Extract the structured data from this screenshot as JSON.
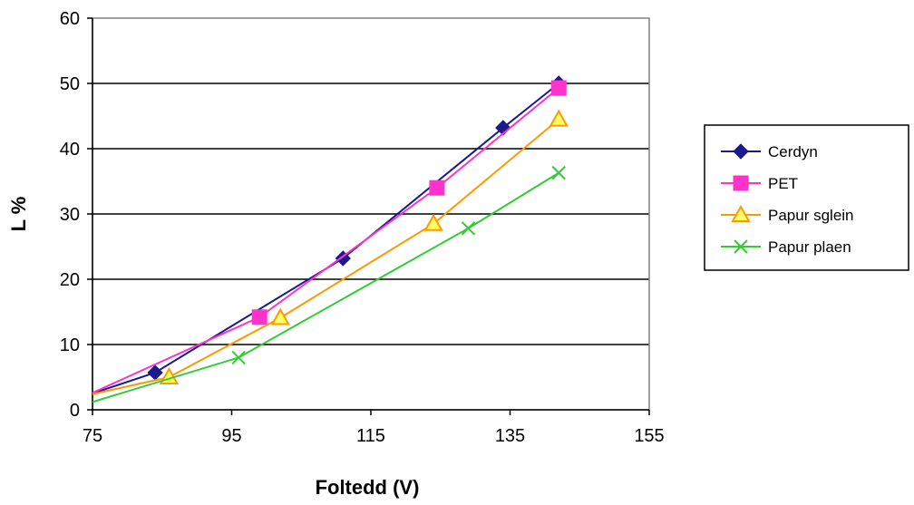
{
  "chart_data": {
    "type": "line",
    "xlabel": "Foltedd (V)",
    "ylabel": "L %",
    "xlim": [
      75,
      155
    ],
    "ylim": [
      0,
      60
    ],
    "xticks": [
      75,
      95,
      115,
      135,
      155
    ],
    "yticks": [
      0,
      10,
      20,
      30,
      40,
      50,
      60
    ],
    "grid": "horizontal",
    "legend_position": "right",
    "series": [
      {
        "name": "Cerdyn",
        "color": "#1a1a8c",
        "marker": "diamond",
        "points": [
          [
            75,
            2.5
          ],
          [
            84,
            5.7
          ],
          [
            111,
            23.2
          ],
          [
            134,
            43.2
          ],
          [
            142,
            50
          ]
        ]
      },
      {
        "name": "PET",
        "color": "#ff33cc",
        "marker": "square",
        "points": [
          [
            75,
            2.6
          ],
          [
            99,
            14.2
          ],
          [
            124.5,
            34
          ],
          [
            142,
            49.3
          ]
        ]
      },
      {
        "name": "Papur sglein",
        "color": "#ff9900",
        "marker": "triangle",
        "points": [
          [
            75,
            2.4
          ],
          [
            86,
            5
          ],
          [
            102,
            14.1
          ],
          [
            124,
            28.5
          ],
          [
            142,
            44.5
          ]
        ]
      },
      {
        "name": "Papur plaen",
        "color": "#33cc33",
        "marker": "x",
        "points": [
          [
            75,
            1.2
          ],
          [
            96,
            8
          ],
          [
            129,
            27.8
          ],
          [
            142,
            36.3
          ]
        ]
      }
    ]
  }
}
